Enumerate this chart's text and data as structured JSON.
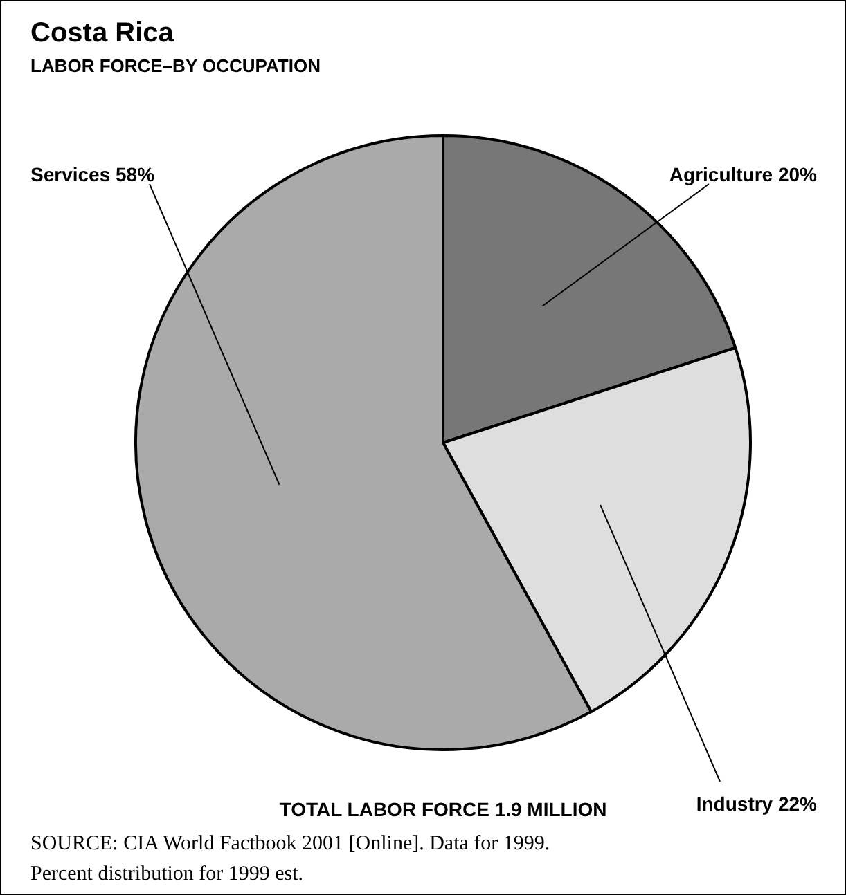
{
  "chart_data": {
    "type": "pie",
    "title": "Costa Rica",
    "subtitle": "LABOR FORCE–BY OCCUPATION",
    "categories": [
      "Agriculture",
      "Industry",
      "Services"
    ],
    "values": [
      20,
      22,
      58
    ],
    "value_labels": [
      "20%",
      "22%",
      "58%"
    ],
    "colors": [
      "#777777",
      "#dedede",
      "#aaaaaa"
    ],
    "annotations": [
      "TOTAL LABOR FORCE 1.9 MILLION",
      "SOURCE: CIA World Factbook 2001 [Online]. Data for 1999.",
      "Percent distribution for 1999 est."
    ]
  }
}
